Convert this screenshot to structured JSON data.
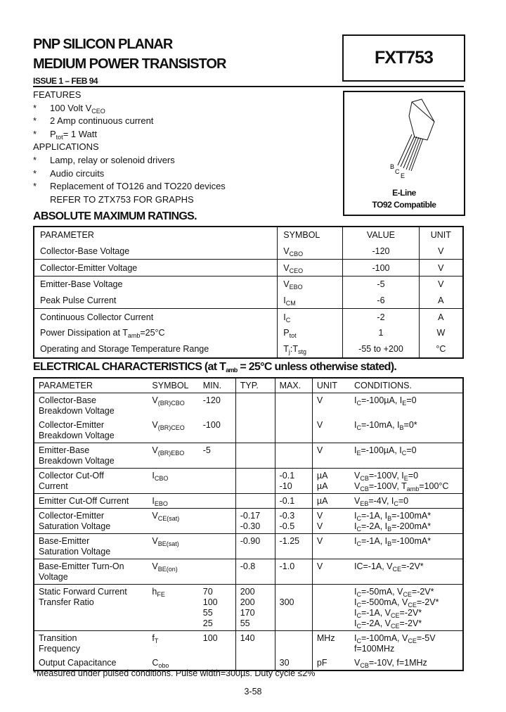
{
  "header": {
    "title_line1": "PNP SILICON PLANAR",
    "title_line2": "MEDIUM POWER TRANSISTOR",
    "issue": "ISSUE 1 – FEB 94",
    "part_number": "FXT753"
  },
  "package": {
    "pins": [
      "B",
      "C",
      "E"
    ],
    "name": "E-Line",
    "compat": "TO92 Compatible"
  },
  "features": {
    "heading": "FEATURES",
    "bullet": "*",
    "items": [
      [
        "100 Volt V",
        {
          "sub": "CEO"
        }
      ],
      [
        "2 Amp continuous current"
      ],
      [
        "P",
        {
          "sub": "tot"
        },
        "= 1 Watt"
      ]
    ]
  },
  "applications": {
    "heading": "APPLICATIONS",
    "items": [
      [
        "Lamp, relay or solenoid drivers"
      ],
      [
        "Audio circuits"
      ],
      [
        "Replacement of TO126 and TO220 devices"
      ]
    ],
    "note": "REFER TO ZTX753 FOR GRAPHS"
  },
  "abs_max": {
    "title": "ABSOLUTE MAXIMUM RATINGS.",
    "columns": [
      "PARAMETER",
      "SYMBOL",
      "VALUE",
      "UNIT"
    ],
    "rows": [
      {
        "param": [
          "Collector-Base Voltage"
        ],
        "symbol": [
          "V",
          {
            "sub": "CBO"
          }
        ],
        "value": "-120",
        "unit": "V",
        "rule": true
      },
      {
        "param": [
          "Collector-Emitter Voltage"
        ],
        "symbol": [
          "V",
          {
            "sub": "CEO"
          }
        ],
        "value": "-100",
        "unit": "V",
        "rule": true
      },
      {
        "param": [
          "Emitter-Base Voltage"
        ],
        "symbol": [
          "V",
          {
            "sub": "EBO"
          }
        ],
        "value": "-5",
        "unit": "V",
        "rule": false
      },
      {
        "param": [
          "Peak Pulse Current"
        ],
        "symbol": [
          "I",
          {
            "sub": "CM"
          }
        ],
        "value": "-6",
        "unit": "A",
        "rule": true
      },
      {
        "param": [
          "Continuous Collector Current"
        ],
        "symbol": [
          "I",
          {
            "sub": "C"
          }
        ],
        "value": "-2",
        "unit": "A",
        "rule": false
      },
      {
        "param": [
          "Power Dissipation at T",
          {
            "sub": "amb"
          },
          "=25°C"
        ],
        "symbol": [
          "P",
          {
            "sub": "tot"
          }
        ],
        "value": "1",
        "unit": "W",
        "rule": false
      },
      {
        "param": [
          "Operating and Storage Temperature Range"
        ],
        "symbol": [
          "T",
          {
            "sub": "j"
          },
          ":T",
          {
            "sub": "stg"
          }
        ],
        "value": "-55 to +200",
        "unit": "°C",
        "rule": false
      }
    ]
  },
  "electrical": {
    "title": [
      "ELECTRICAL CHARACTERISTICS (at T",
      {
        "sub": "amb"
      },
      " = 25°C unless otherwise stated)."
    ],
    "columns": [
      "PARAMETER",
      "SYMBOL",
      "MIN.",
      "TYP.",
      "MAX.",
      "UNIT",
      "CONDITIONS."
    ],
    "rows": [
      {
        "param": [
          "Collector-Base",
          "Breakdown Voltage"
        ],
        "symbol": [
          "V",
          {
            "sub": "(BR)CBO"
          }
        ],
        "min": [
          "-120"
        ],
        "typ": [],
        "max": [],
        "unit": [
          "V"
        ],
        "cond": [
          [
            "I",
            {
              "sub": "C"
            },
            "=-100µA, I",
            {
              "sub": "E"
            },
            "=0"
          ]
        ],
        "rule": false
      },
      {
        "param": [
          "Collector-Emitter",
          "Breakdown Voltage"
        ],
        "symbol": [
          "V",
          {
            "sub": "(BR)CEO"
          }
        ],
        "min": [
          "-100"
        ],
        "typ": [],
        "max": [],
        "unit": [
          "V"
        ],
        "cond": [
          [
            "I",
            {
              "sub": "C"
            },
            "=-10mA, I",
            {
              "sub": "B"
            },
            "=0*"
          ]
        ],
        "rule": true
      },
      {
        "param": [
          "Emitter-Base",
          "Breakdown Voltage"
        ],
        "symbol": [
          "V",
          {
            "sub": "(BR)EBO"
          }
        ],
        "min": [
          "-5"
        ],
        "typ": [],
        "max": [],
        "unit": [
          "V"
        ],
        "cond": [
          [
            "I",
            {
              "sub": "E"
            },
            "=-100µA, I",
            {
              "sub": "C"
            },
            "=0"
          ]
        ],
        "rule": true
      },
      {
        "param": [
          "Collector Cut-Off",
          "Current"
        ],
        "symbol": [
          "I",
          {
            "sub": "CBO"
          }
        ],
        "min": [],
        "typ": [],
        "max": [
          "-0.1",
          "-10"
        ],
        "unit": [
          "µA",
          "µA"
        ],
        "cond": [
          [
            "V",
            {
              "sub": "CB"
            },
            "=-100V, I",
            {
              "sub": "E"
            },
            "=0"
          ],
          [
            "V",
            {
              "sub": "CB"
            },
            "=-100V, T",
            {
              "sub": "amb"
            },
            "=100°C"
          ]
        ],
        "rule": true
      },
      {
        "param": [
          "Emitter Cut-Off Current"
        ],
        "symbol": [
          "I",
          {
            "sub": "EBO"
          }
        ],
        "min": [],
        "typ": [],
        "max": [
          "-0.1"
        ],
        "unit": [
          "µA"
        ],
        "cond": [
          [
            "V",
            {
              "sub": "EB"
            },
            "=-4V, I",
            {
              "sub": "C"
            },
            "=0"
          ]
        ],
        "rule": true
      },
      {
        "param": [
          "Collector-Emitter",
          "Saturation Voltage"
        ],
        "symbol": [
          "V",
          {
            "sub": "CE(sat)"
          }
        ],
        "min": [],
        "typ": [
          "-0.17",
          "-0.30"
        ],
        "max": [
          "-0.3",
          "-0.5"
        ],
        "unit": [
          "V",
          "V"
        ],
        "cond": [
          [
            "I",
            {
              "sub": "C"
            },
            "=-1A, I",
            {
              "sub": "B"
            },
            "=-100mA*"
          ],
          [
            "I",
            {
              "sub": "C"
            },
            "=-2A, I",
            {
              "sub": "B"
            },
            "=-200mA*"
          ]
        ],
        "rule": true
      },
      {
        "param": [
          "Base-Emitter",
          "Saturation Voltage"
        ],
        "symbol": [
          "V",
          {
            "sub": "BE(sat)"
          }
        ],
        "min": [],
        "typ": [
          "-0.90"
        ],
        "max": [
          "-1.25"
        ],
        "unit": [
          "V"
        ],
        "cond": [
          [
            "I",
            {
              "sub": "C"
            },
            "=-1A, I",
            {
              "sub": "B"
            },
            "=-100mA*"
          ]
        ],
        "rule": true
      },
      {
        "param": [
          "Base-Emitter Turn-On",
          "Voltage"
        ],
        "symbol": [
          "V",
          {
            "sub": "BE(on)"
          }
        ],
        "min": [],
        "typ": [
          "-0.8"
        ],
        "max": [
          "-1.0"
        ],
        "unit": [
          "V"
        ],
        "cond": [
          [
            "IC=-1A, V",
            {
              "sub": "CE"
            },
            "=-2V*"
          ]
        ],
        "rule": true
      },
      {
        "param": [
          "Static Forward Current",
          "Transfer Ratio"
        ],
        "symbol": [
          "h",
          {
            "sub": "FE"
          }
        ],
        "min": [
          "70",
          "100",
          "55",
          "25"
        ],
        "typ": [
          "200",
          "200",
          "170",
          "55"
        ],
        "max": [
          "",
          "300"
        ],
        "unit": [],
        "cond": [
          [
            "I",
            {
              "sub": "C"
            },
            "=-50mA, V",
            {
              "sub": "CE"
            },
            "=-2V*"
          ],
          [
            "I",
            {
              "sub": "C"
            },
            "=-500mA, V",
            {
              "sub": "CE"
            },
            "=-2V*"
          ],
          [
            "I",
            {
              "sub": "C"
            },
            "=-1A, V",
            {
              "sub": "CE"
            },
            "=-2V*"
          ],
          [
            "I",
            {
              "sub": "C"
            },
            "=-2A, V",
            {
              "sub": "CE"
            },
            "=-2V*"
          ]
        ],
        "rule": true
      },
      {
        "param": [
          "Transition",
          "Frequency"
        ],
        "symbol": [
          "f",
          {
            "sub": "T"
          }
        ],
        "min": [
          "100"
        ],
        "typ": [
          "140"
        ],
        "max": [],
        "unit": [
          "MHz"
        ],
        "cond": [
          [
            "I",
            {
              "sub": "C"
            },
            "=-100mA, V",
            {
              "sub": "CE"
            },
            "=-5V"
          ],
          [
            "f=100MHz"
          ]
        ],
        "rule": false
      },
      {
        "param": [
          "Output Capacitance"
        ],
        "symbol": [
          "C",
          {
            "sub": "obo"
          }
        ],
        "min": [],
        "typ": [],
        "max": [
          "30"
        ],
        "unit": [
          "pF"
        ],
        "cond": [
          [
            "V",
            {
              "sub": "CB"
            },
            "=-10V, f=1MHz"
          ]
        ],
        "rule": false
      }
    ],
    "footnote": "*Measured under pulsed conditions. Pulse width=300µs. Duty cycle ≤2%"
  },
  "page_number": "3-58"
}
